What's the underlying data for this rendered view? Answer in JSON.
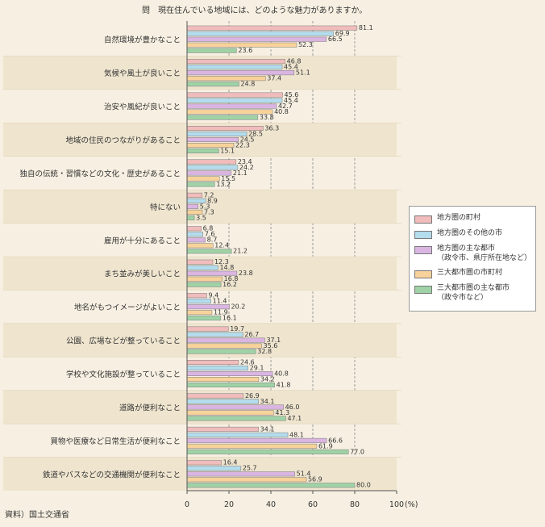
{
  "chart_data": {
    "type": "bar",
    "orientation": "horizontal",
    "title": "問　現在住んでいる地域には、どのような魅力がありますか。",
    "source": "資料）国土交通省",
    "x_unit": "(%)",
    "xlim": [
      0,
      100
    ],
    "xticks": [
      0,
      20,
      40,
      60,
      80,
      100
    ],
    "grid": "dashed vertical",
    "legend_position": "right",
    "categories": [
      "自然環境が豊かなこと",
      "気候や風土が良いこと",
      "治安や風紀が良いこと",
      "地域の住民のつながりがあること",
      "独自の伝統・習慣などの文化・歴史があること",
      "特にない",
      "雇用が十分にあること",
      "まち並みが美しいこと",
      "地名がもつイメージがよいこと",
      "公園、広場などが整っていること",
      "学校や文化施設が整っていること",
      "道路が便利なこと",
      "買物や医療など日常生活が便利なこと",
      "鉄道やバスなどの交通機関が便利なこと"
    ],
    "series": [
      {
        "name": "地方圏の町村",
        "sub": "",
        "color": "#f0bcbc",
        "values": [
          81.1,
          46.8,
          45.6,
          36.3,
          23.4,
          7.2,
          6.8,
          12.3,
          9.4,
          19.7,
          24.6,
          26.9,
          34.1,
          16.4
        ]
      },
      {
        "name": "地方圏のその他の市",
        "sub": "",
        "color": "#b3dced",
        "values": [
          69.9,
          45.4,
          45.4,
          28.5,
          24.2,
          8.9,
          7.6,
          14.8,
          11.4,
          26.7,
          29.1,
          34.1,
          48.1,
          25.7
        ]
      },
      {
        "name": "地方圏の主な都市",
        "sub": "（政令市、県庁所在地など）",
        "color": "#dab5e2",
        "values": [
          66.5,
          51.1,
          42.7,
          24.5,
          21.1,
          5.3,
          8.7,
          23.8,
          20.2,
          37.1,
          40.8,
          46.0,
          66.6,
          51.4
        ]
      },
      {
        "name": "三大都市圏の市町村",
        "sub": "",
        "color": "#f7d29a",
        "values": [
          52.3,
          37.4,
          40.8,
          22.3,
          15.5,
          7.3,
          12.4,
          16.8,
          11.9,
          35.6,
          34.2,
          41.3,
          61.9,
          56.9
        ]
      },
      {
        "name": "三大都市圏の主な都市",
        "sub": "（政令市など）",
        "color": "#9fd2a6",
        "values": [
          23.6,
          24.8,
          33.8,
          15.1,
          13.2,
          3.5,
          21.2,
          16.2,
          16.1,
          32.8,
          41.8,
          47.1,
          77.0,
          80.0
        ]
      }
    ]
  }
}
